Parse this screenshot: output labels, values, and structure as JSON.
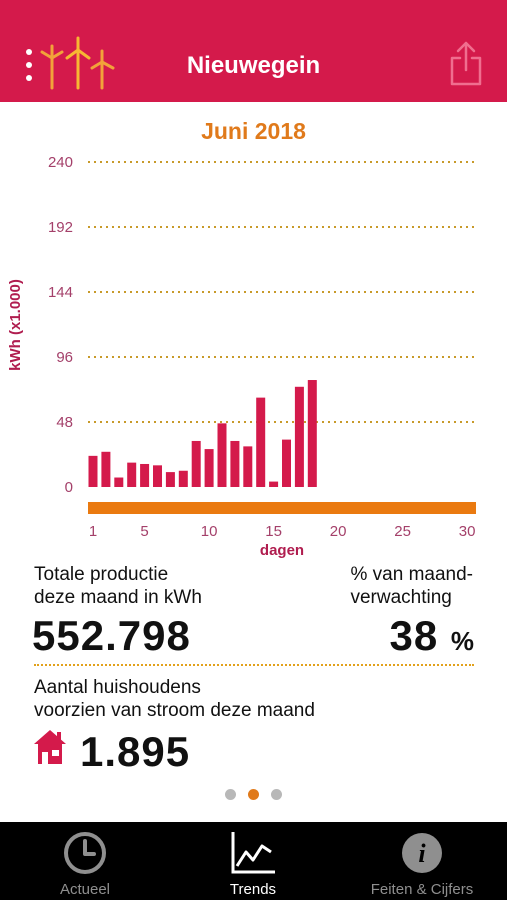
{
  "header": {
    "title": "Nieuwegein"
  },
  "chart_data": {
    "type": "bar",
    "title": "Juni 2018",
    "ylabel": "kWh (x1.000)",
    "xlabel": "dagen",
    "ylim": [
      0,
      240
    ],
    "yticks": [
      0,
      48,
      96,
      144,
      192,
      240
    ],
    "xticks": [
      1,
      5,
      10,
      15,
      20,
      25,
      30
    ],
    "x": [
      1,
      2,
      3,
      4,
      5,
      6,
      7,
      8,
      9,
      10,
      11,
      12,
      13,
      14,
      15,
      16,
      17,
      18
    ],
    "values": [
      23,
      26,
      7,
      18,
      17,
      16,
      11,
      12,
      34,
      28,
      47,
      34,
      30,
      66,
      4,
      35,
      74,
      79
    ],
    "grid": true,
    "bar_color": "#d41a4b",
    "axis_color": "#ea7a10"
  },
  "stats": {
    "production_label_1": "Totale productie",
    "production_label_2": "deze maand in kWh",
    "production_value": "552.798",
    "expectation_label_1": "% van maand-",
    "expectation_label_2": "verwachting",
    "expectation_value": "38",
    "expectation_unit": "%",
    "households_label_1": "Aantal huishoudens",
    "households_label_2": "voorzien van stroom deze maand",
    "households_value": "1.895"
  },
  "colors": {
    "brand": "#d41a4b",
    "accent": "#e07a1b"
  },
  "tabs": [
    {
      "label": "Actueel",
      "icon": "clock-icon",
      "active": false
    },
    {
      "label": "Trends",
      "icon": "chart-line-icon",
      "active": true
    },
    {
      "label": "Feiten & Cijfers",
      "icon": "info-icon",
      "active": false
    }
  ]
}
